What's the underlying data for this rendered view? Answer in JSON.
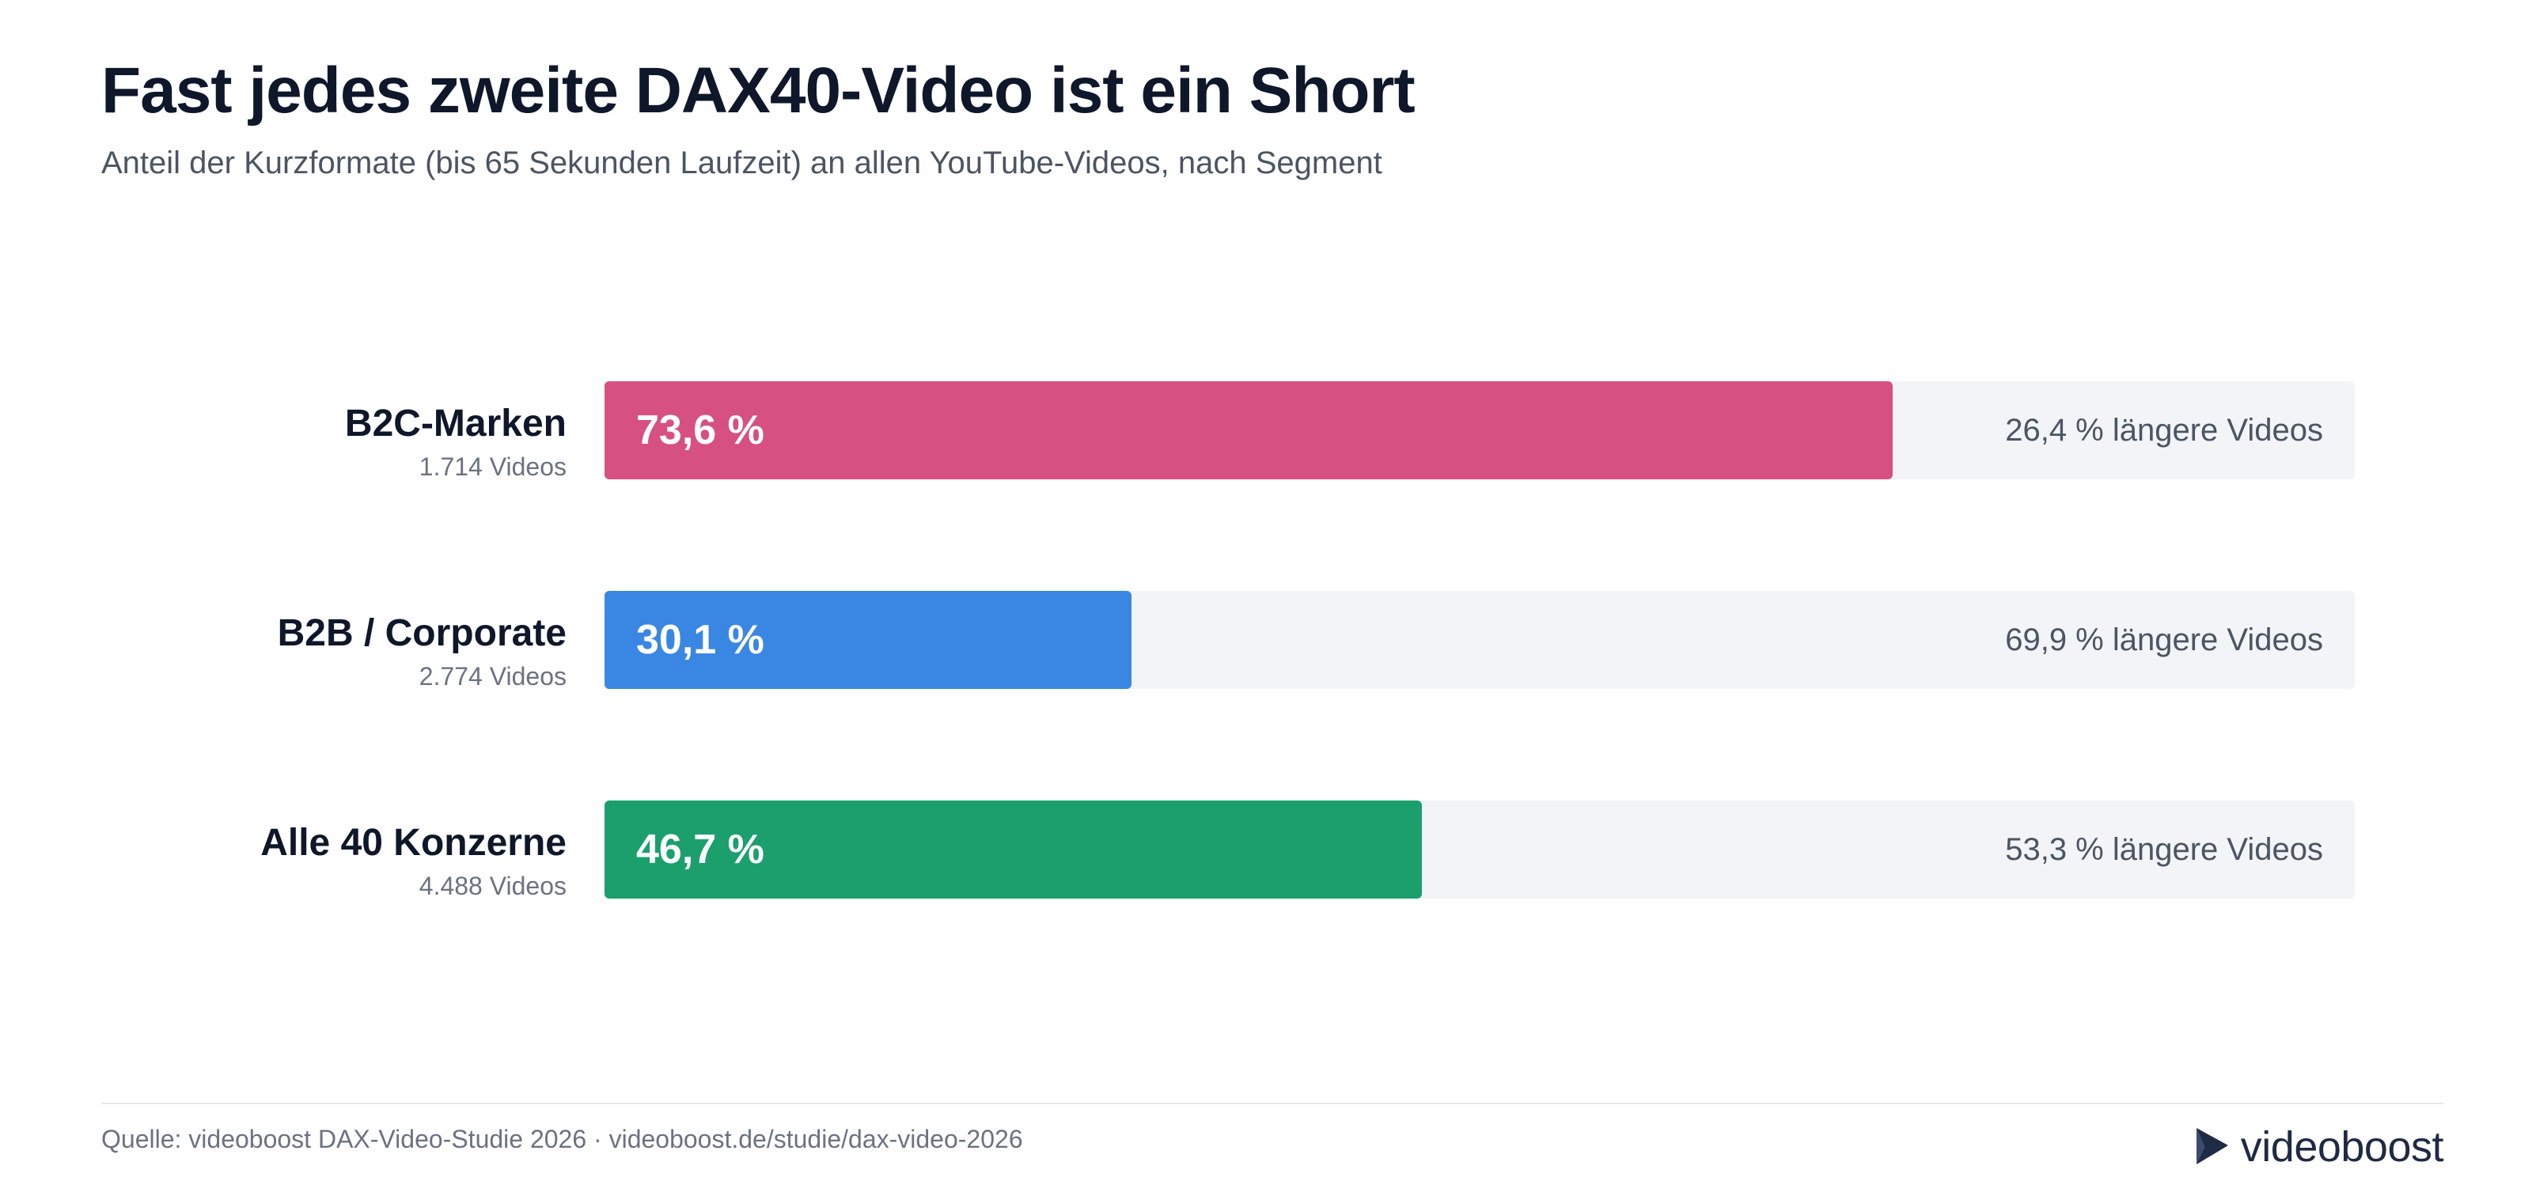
{
  "header": {
    "title": "Fast jedes zweite DAX40-Video ist ein Short",
    "subtitle": "Anteil der Kurzformate (bis 65 Sekunden Laufzeit) an allen YouTube-Videos, nach Segment"
  },
  "chart_data": {
    "type": "bar",
    "orientation": "horizontal",
    "stacked_to": 100,
    "categories": [
      "B2C-Marken",
      "B2B / Corporate",
      "Alle 40 Konzerne"
    ],
    "counts": [
      "1.714 Videos",
      "2.774 Videos",
      "4.488 Videos"
    ],
    "values": [
      73.6,
      30.1,
      46.7
    ],
    "value_labels": [
      "73,6 %",
      "30,1 %",
      "46,7 %"
    ],
    "remainder_values": [
      26.4,
      69.9,
      53.3
    ],
    "remainder_labels": [
      "26,4 % längere Videos",
      "69,9 % längere Videos",
      "53,3 % längere Videos"
    ],
    "colors": [
      "#d6517f",
      "#3a87e3",
      "#1ba06d"
    ],
    "track_color": "#f3f4f7",
    "xlim": [
      0,
      100
    ],
    "grid": false,
    "legend": "none"
  },
  "footer": {
    "source": "Quelle: videoboost DAX-Video-Studie 2026 · videoboost.de/studie/dax-video-2026",
    "brand": "videoboost",
    "brand_icon": "play-arrow-logo-icon"
  }
}
